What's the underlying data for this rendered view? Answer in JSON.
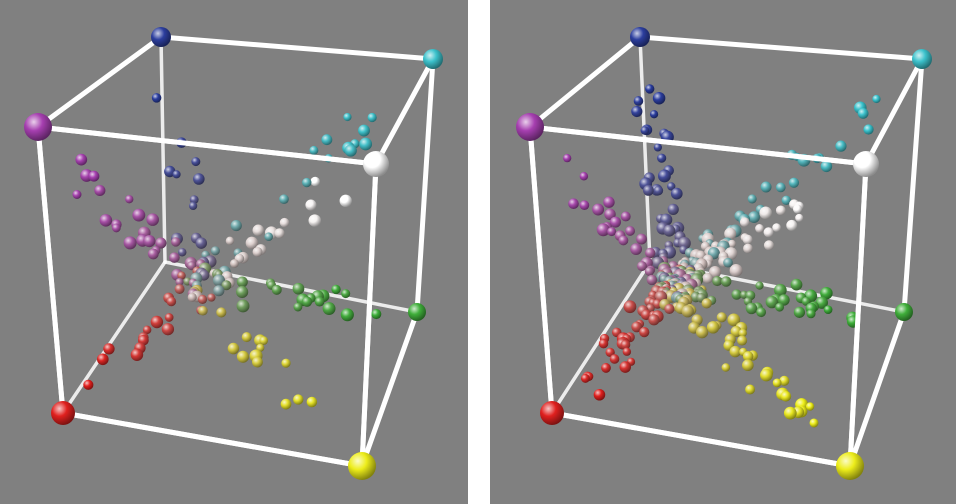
{
  "background_color": "#808080",
  "frame_color": "#ffffff",
  "vertex_colors": {
    "blue": "#2c3e9e",
    "cyan": "#3cc2cc",
    "magenta": "#a63fb0",
    "white": "#ffffff",
    "green": "#3fae3a",
    "red": "#e0201e",
    "yellow": "#eded1a"
  }
}
